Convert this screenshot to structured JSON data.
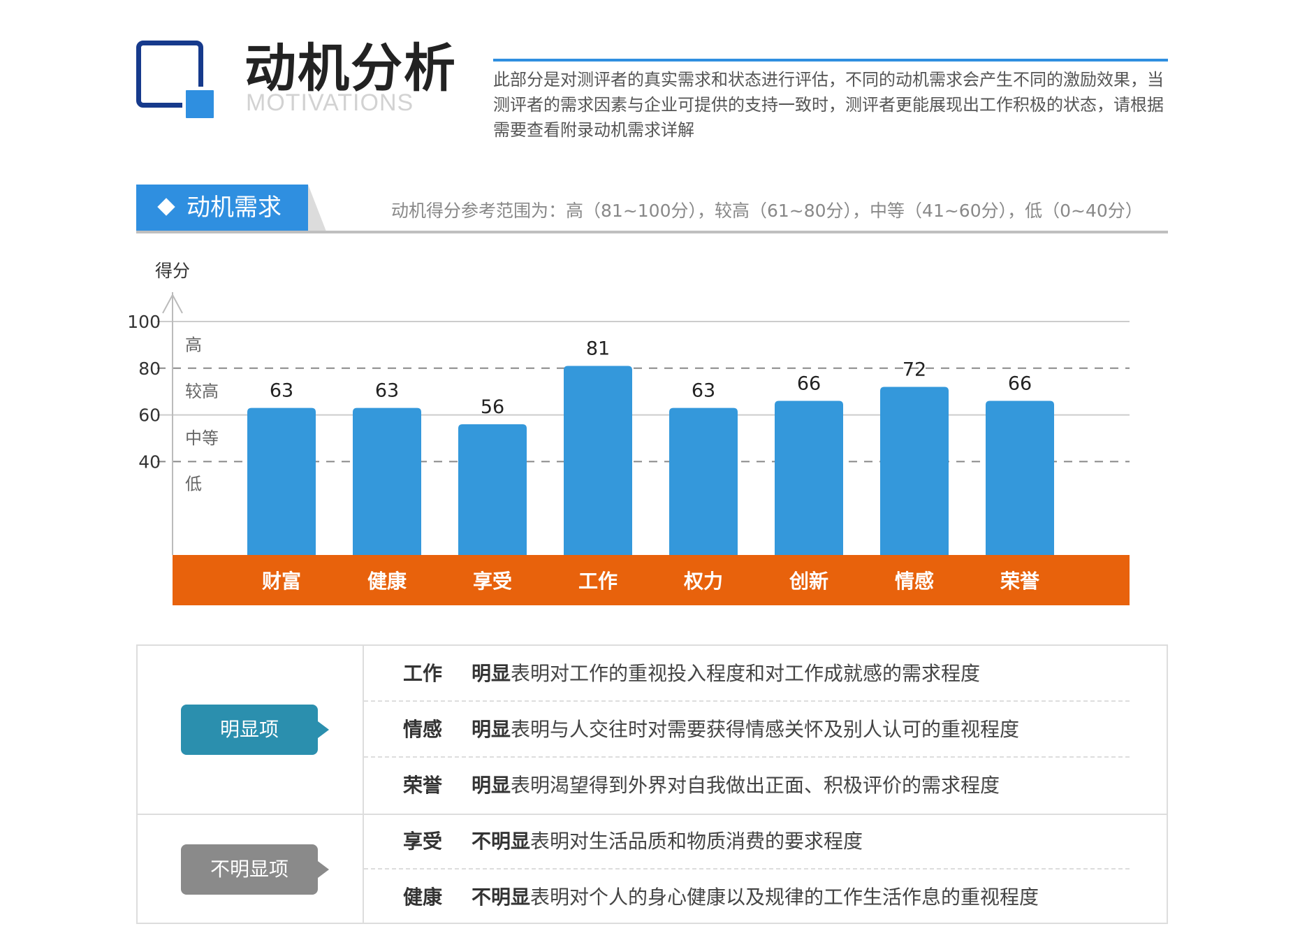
{
  "header": {
    "title": "动机分析",
    "subtitle": "MOTIVATIONS",
    "intro": "此部分是对测评者的真实需求和状态进行评估，不同的动机需求会产生不同的激励效果，当测评者的需求因素与企业可提供的支持一致时，测评者更能展现出工作积极的状态，请根据需要查看附录动机需求详解"
  },
  "section": {
    "tab_label": "动机需求",
    "range_note": "动机得分参考范围为：高（81~100分），较高（61~80分），中等（41~60分），低（0~40分）"
  },
  "chart_data": {
    "type": "bar",
    "ylabel": "得分",
    "ylim": [
      0,
      100
    ],
    "yticks": [
      40,
      60,
      80,
      100
    ],
    "bands": [
      {
        "label": "高",
        "from": 80,
        "to": 100
      },
      {
        "label": "较高",
        "from": 60,
        "to": 80
      },
      {
        "label": "中等",
        "from": 40,
        "to": 60
      },
      {
        "label": "低",
        "from": 0,
        "to": 40
      }
    ],
    "dashed_lines": [
      40,
      80
    ],
    "categories": [
      "财富",
      "健康",
      "享受",
      "工作",
      "权力",
      "创新",
      "情感",
      "荣誉"
    ],
    "values": [
      63,
      63,
      56,
      81,
      63,
      66,
      72,
      66
    ],
    "colors": {
      "bar": "#3498db",
      "axis_band": "#e8620c",
      "grid": "#cccccc"
    }
  },
  "table": {
    "groups": [
      {
        "badge": "明显项",
        "rows": [
          {
            "key": "工作",
            "lead": "明显",
            "text": "表明对工作的重视投入程度和对工作成就感的需求程度"
          },
          {
            "key": "情感",
            "lead": "明显",
            "text": "表明与人交往时对需要获得情感关怀及别人认可的重视程度"
          },
          {
            "key": "荣誉",
            "lead": "明显",
            "text": "表明渴望得到外界对自我做出正面、积极评价的需求程度"
          }
        ]
      },
      {
        "badge": "不明显项",
        "rows": [
          {
            "key": "享受",
            "lead": "不明显",
            "text": "表明对生活品质和物质消费的要求程度"
          },
          {
            "key": "健康",
            "lead": "不明显",
            "text": "表明对个人的身心健康以及规律的工作生活作息的重视程度"
          }
        ]
      }
    ]
  }
}
